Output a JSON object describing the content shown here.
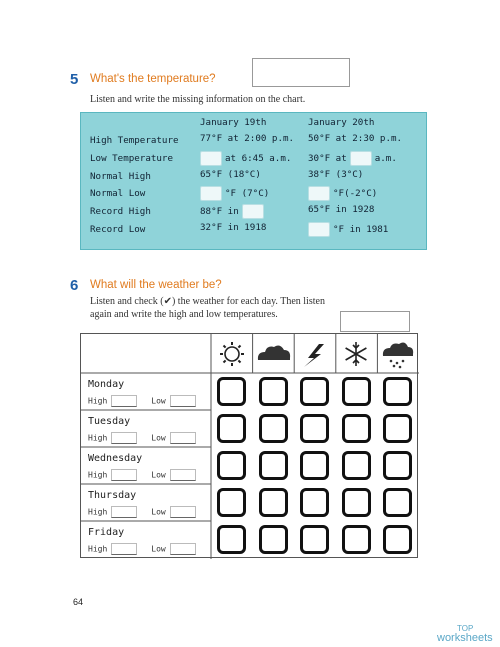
{
  "section5": {
    "number": "5",
    "title": "What's the temperature?",
    "instruction": "Listen and write the missing information on the chart.",
    "table": {
      "columns": [
        "January 19th",
        "January 20th"
      ],
      "rows": [
        {
          "label": "High Temperature",
          "cells": [
            {
              "pre": "77°F at 2:00 p.m."
            },
            {
              "pre": "50°F at 2:30 p.m."
            }
          ]
        },
        {
          "label": "Low Temperature",
          "cells": [
            {
              "blank": true,
              "post": "at 6:45 a.m."
            },
            {
              "pre": "30°F at",
              "blank": true,
              "post": "a.m."
            }
          ]
        },
        {
          "label": "Normal High",
          "cells": [
            {
              "pre": "65°F (18°C)"
            },
            {
              "pre": "38°F (3°C)"
            }
          ]
        },
        {
          "label": "Normal Low",
          "cells": [
            {
              "blank": true,
              "post": "°F (7°C)"
            },
            {
              "blank": true,
              "post": "°F(-2°C)"
            }
          ]
        },
        {
          "label": "Record High",
          "cells": [
            {
              "pre": "88°F in",
              "blank": true
            },
            {
              "pre": "65°F in 1928"
            }
          ]
        },
        {
          "label": "Record Low",
          "cells": [
            {
              "pre": "32°F in 1918"
            },
            {
              "blank": true,
              "post": "°F in 1981"
            }
          ]
        }
      ]
    }
  },
  "section6": {
    "number": "6",
    "title": "What will the weather be?",
    "instruction_lines": [
      "Listen and check (✔) the weather for each day. Then listen",
      "again and write the high and low temperatures."
    ],
    "days": [
      {
        "name": "Monday",
        "high": "High",
        "low": "Low"
      },
      {
        "name": "Tuesday",
        "high": "High",
        "low": "Low"
      },
      {
        "name": "Wednesday",
        "high": "High",
        "low": "Low"
      },
      {
        "name": "Thursday",
        "high": "High",
        "low": "Low"
      },
      {
        "name": "Friday",
        "high": "High",
        "low": "Low"
      }
    ]
  },
  "footer": {
    "page_number": "64",
    "watermark_top": "TOP",
    "watermark_bottom": "worksheets"
  }
}
